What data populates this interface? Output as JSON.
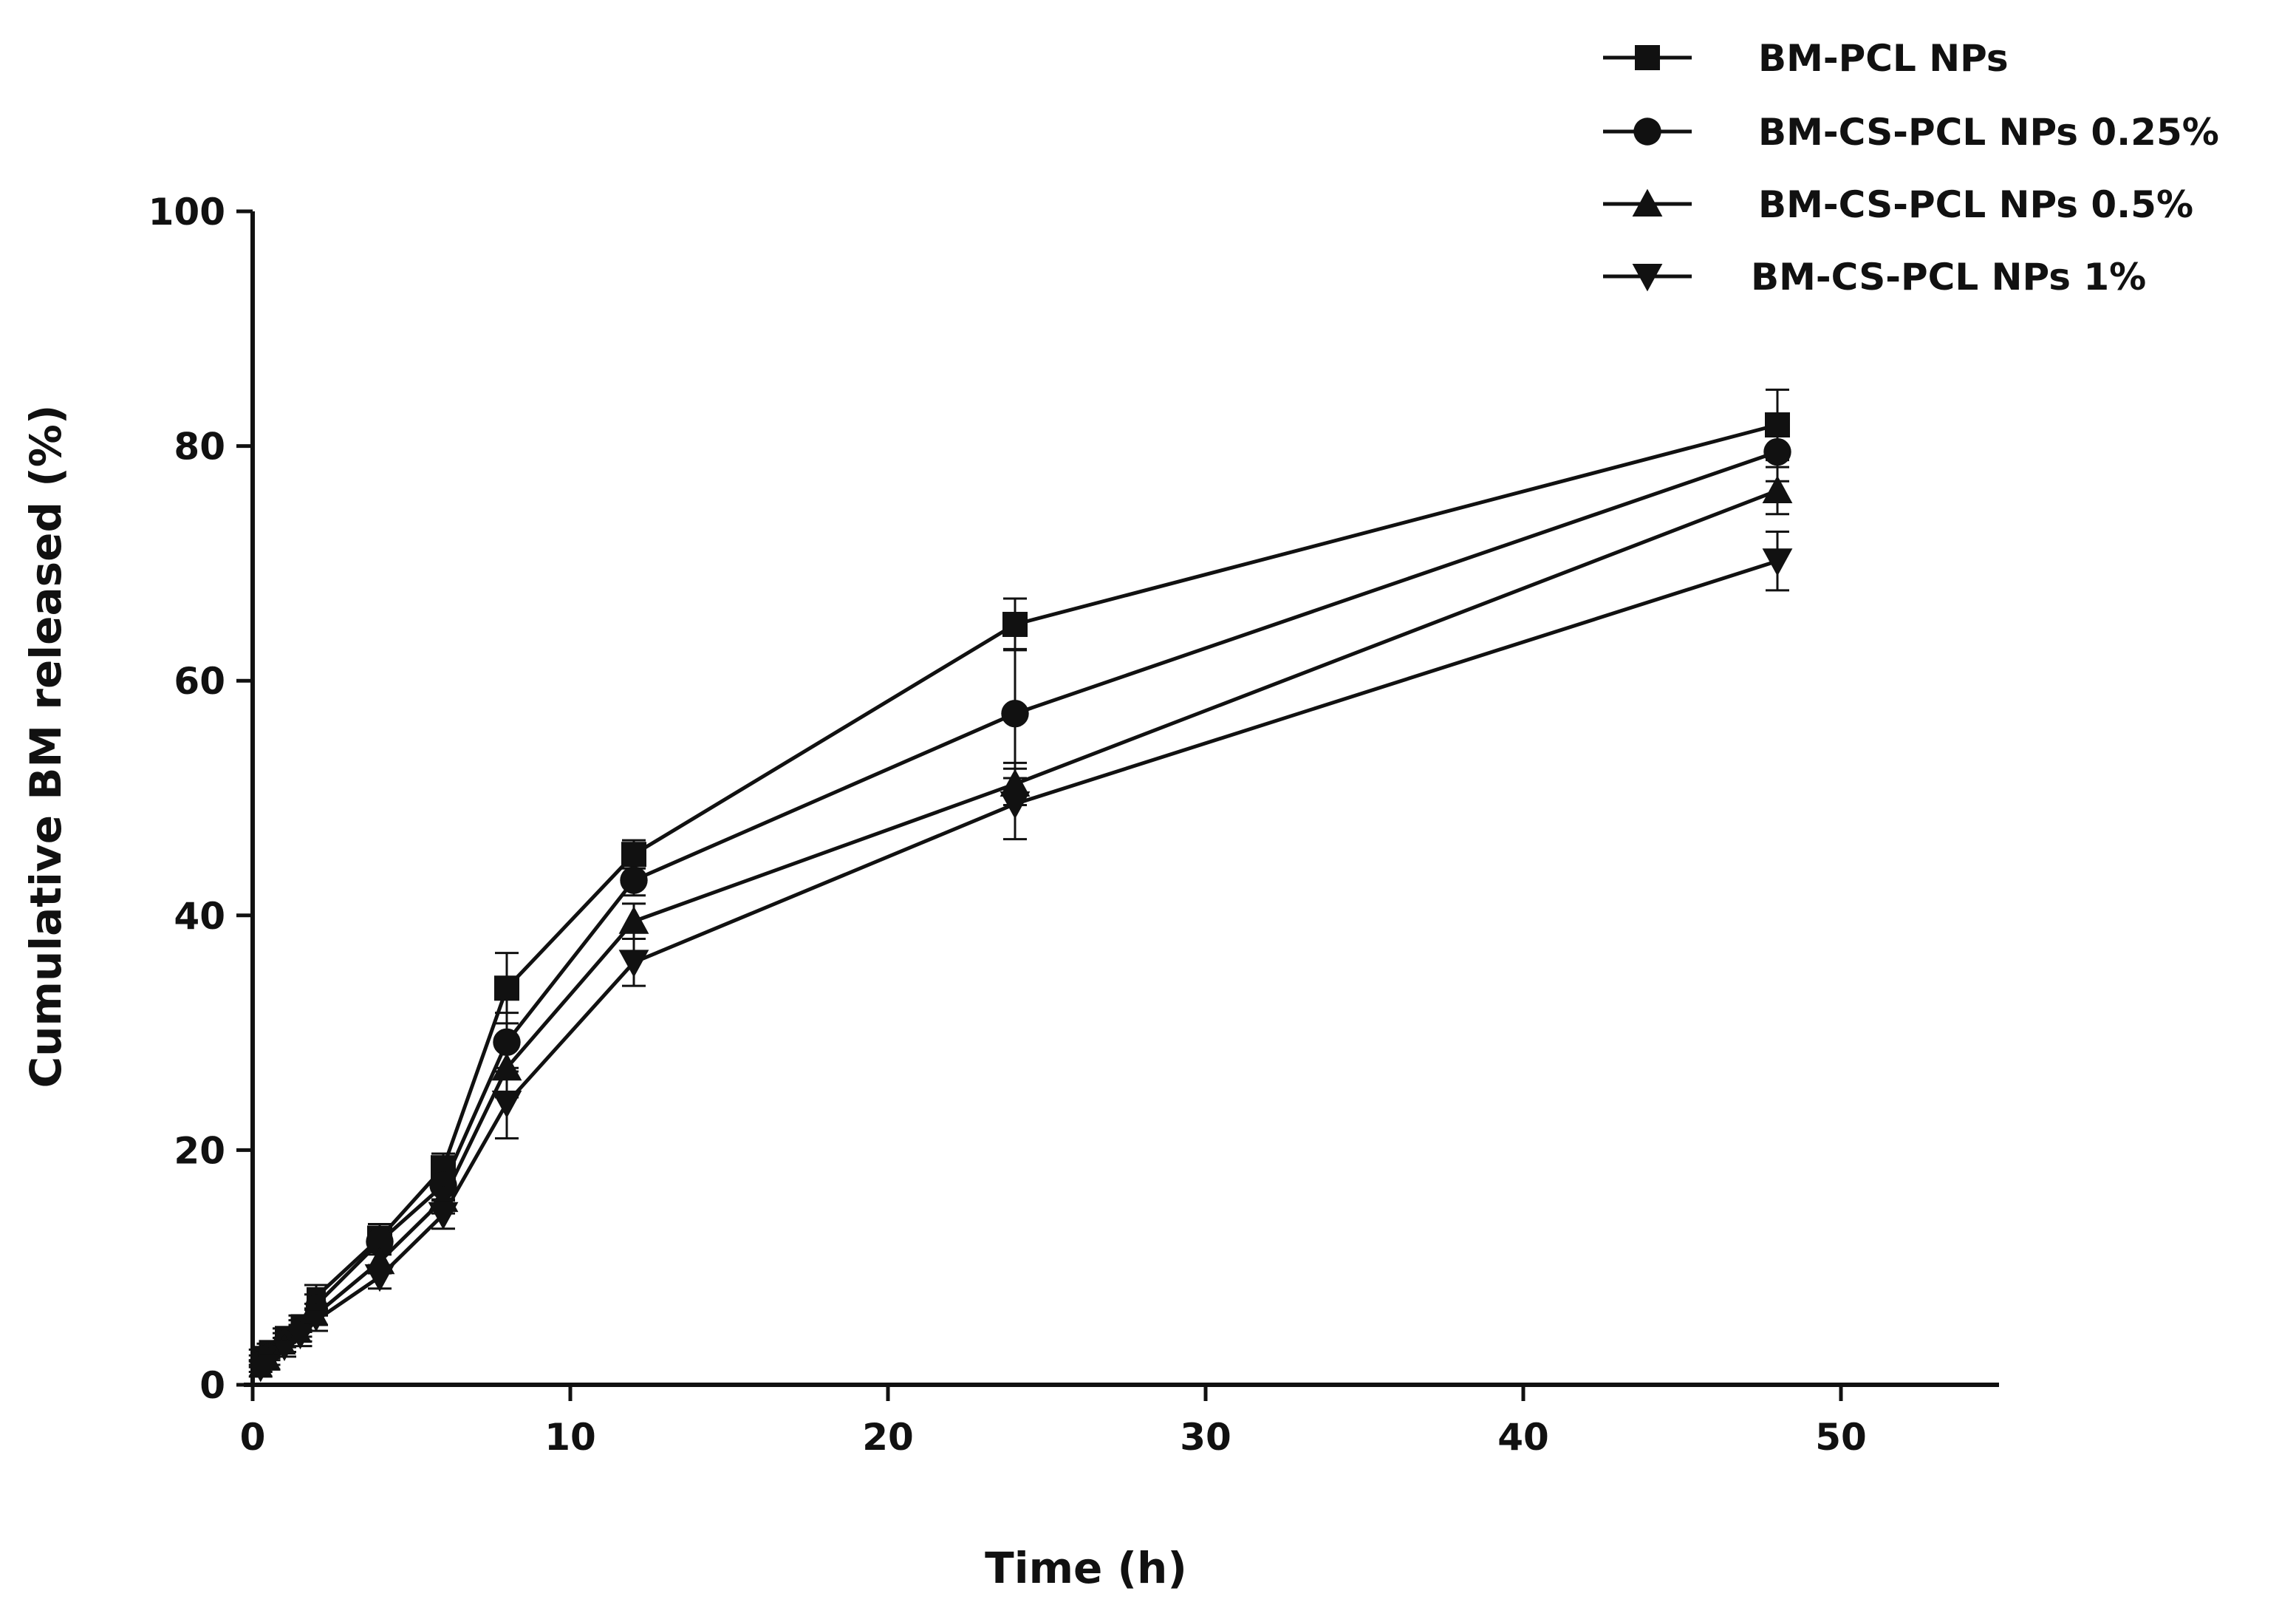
{
  "chart_data": {
    "type": "line",
    "title": "",
    "xlabel": "Time (h)",
    "ylabel": "Cumulative BM released (%)",
    "xlim": [
      0,
      55
    ],
    "ylim": [
      0,
      100
    ],
    "x_ticks": [
      0,
      10,
      20,
      30,
      40,
      50
    ],
    "y_ticks": [
      0,
      20,
      40,
      60,
      80,
      100
    ],
    "x_tick_labels": [
      "0",
      "10",
      "20",
      "30",
      "40",
      "50"
    ],
    "y_tick_labels": [
      "0",
      "20",
      "40",
      "60",
      "80",
      "100"
    ],
    "grid": false,
    "legend_position": "top-right",
    "x": [
      0.25,
      0.5,
      1,
      1.5,
      2,
      4,
      6,
      8,
      12,
      24,
      48
    ],
    "series": [
      {
        "name": "BM-PCL NPs",
        "marker": "square",
        "color": "#111111",
        "values": [
          2.5,
          3.0,
          4.2,
          5.2,
          7.5,
          12.5,
          18.5,
          33.8,
          45.2,
          64.8,
          81.8
        ],
        "errors": [
          0.5,
          0.5,
          0.6,
          0.7,
          1.0,
          1.2,
          1.2,
          3.0,
          1.2,
          2.2,
          3.0
        ]
      },
      {
        "name": "BM-CS-PCL NPs 0.25%",
        "marker": "circle",
        "color": "#111111",
        "values": [
          2.0,
          2.6,
          3.8,
          4.8,
          6.8,
          12.2,
          17.0,
          29.2,
          43.0,
          57.2,
          79.5
        ],
        "errors": [
          0.5,
          0.5,
          0.6,
          0.7,
          0.9,
          1.1,
          1.2,
          2.5,
          1.3,
          5.5,
          2.5
        ]
      },
      {
        "name": "BM-CS-PCL NPs 0.5%",
        "marker": "triangle-up",
        "color": "#111111",
        "values": [
          1.6,
          2.2,
          3.4,
          4.4,
          6.0,
          10.5,
          15.8,
          27.0,
          39.5,
          51.2,
          76.2
        ],
        "errors": [
          0.5,
          0.5,
          0.6,
          0.7,
          0.9,
          1.0,
          1.2,
          2.5,
          1.5,
          1.8,
          2.0
        ]
      },
      {
        "name": "BM-CS-PCL NPs 1%",
        "marker": "triangle-down",
        "color": "#111111",
        "values": [
          1.2,
          1.8,
          3.0,
          4.0,
          5.5,
          9.2,
          14.5,
          24.0,
          36.0,
          49.5,
          70.2
        ],
        "errors": [
          0.5,
          0.5,
          0.6,
          0.7,
          0.9,
          1.0,
          1.2,
          3.0,
          2.0,
          3.0,
          2.5
        ]
      }
    ]
  }
}
